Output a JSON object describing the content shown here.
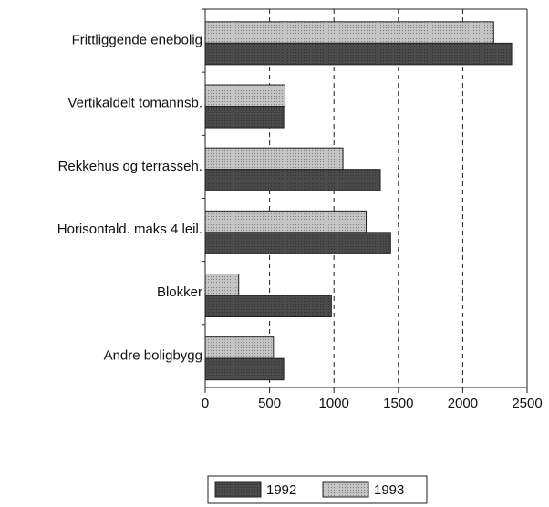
{
  "chart_data": {
    "type": "bar",
    "orientation": "horizontal",
    "categories": [
      "Frittliggende enebolig",
      "Vertikaldelt tomannsb.",
      "Rekkehus og terrasseh.",
      "Horisontald. maks 4 leil.",
      "Blokker",
      "Andre boligbygg"
    ],
    "series": [
      {
        "name": "1992",
        "color": "#4a4a4a",
        "values": [
          2380,
          610,
          1360,
          1440,
          980,
          610
        ]
      },
      {
        "name": "1993",
        "color": "#c4c4c4",
        "values": [
          2240,
          620,
          1070,
          1250,
          260,
          530
        ]
      }
    ],
    "xlim": [
      0,
      2500
    ],
    "xticks": [
      0,
      500,
      1000,
      1500,
      2000,
      2500
    ],
    "grid": true,
    "legend": "bottom"
  }
}
